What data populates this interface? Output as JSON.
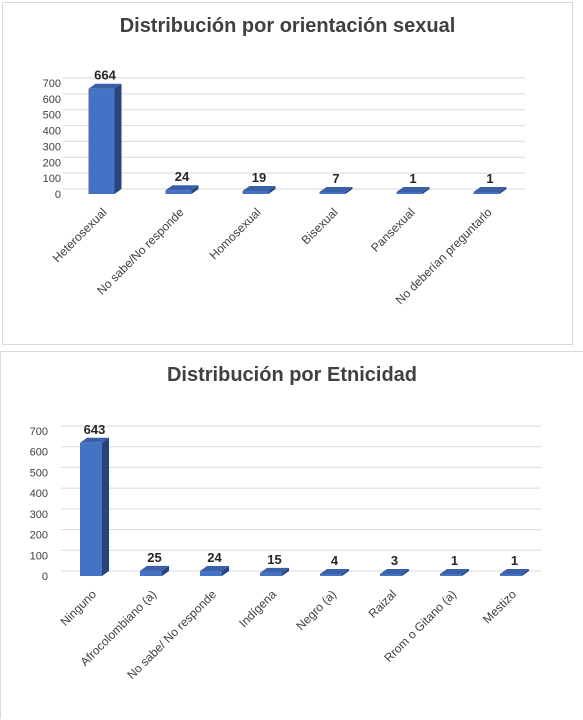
{
  "chart_data": [
    {
      "type": "bar",
      "title": "Distribución por orientación sexual",
      "categories": [
        "Heterosexual",
        "No sabe/No responde",
        "Homosexual",
        "Bisexual",
        "Pansexual",
        "No deberían preguntarlo"
      ],
      "values": [
        664,
        24,
        19,
        7,
        1,
        1
      ],
      "data_labels": [
        "664",
        "24",
        "19",
        "7",
        "1",
        "1"
      ],
      "ylim": [
        0,
        700
      ],
      "yticks": [
        "0",
        "100",
        "200",
        "300",
        "400",
        "500",
        "600",
        "700"
      ],
      "grid": true,
      "bar_color": "#4472C4",
      "three_d": true
    },
    {
      "type": "bar",
      "title": "Distribución por Etnicidad",
      "categories": [
        "Ninguno",
        "Afrocolombiano (a)",
        "No sabe/ No responde",
        "Indígena",
        "Negro (a)",
        "Raizal",
        "Rrom o Gitano (a)",
        "Mestizo"
      ],
      "values": [
        643,
        25,
        24,
        15,
        4,
        3,
        1,
        1
      ],
      "data_labels": [
        "643",
        "25",
        "24",
        "15",
        "4",
        "3",
        "1",
        "1"
      ],
      "ylim": [
        0,
        700
      ],
      "yticks": [
        "0",
        "100",
        "200",
        "300",
        "400",
        "500",
        "600",
        "700"
      ],
      "grid": true,
      "bar_color": "#4472C4",
      "three_d": true
    }
  ]
}
